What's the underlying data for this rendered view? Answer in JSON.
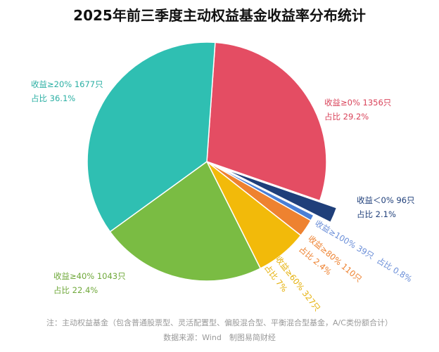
{
  "chart_data": {
    "type": "pie",
    "title": "2025年前三季度主动权益基金收益率分布统计",
    "start_angle_deg": 4,
    "direction": "clockwise",
    "slices": [
      {
        "label": "收益≥0% 1356只",
        "share_label": "占比 29.2%",
        "count": 1356,
        "percent": 29.2,
        "color": "#E44D63",
        "exploded": false
      },
      {
        "label": "收益＜0% 96只",
        "share_label": "占比 2.1%",
        "count": 96,
        "percent": 2.1,
        "color": "#1F3F7A",
        "exploded": true
      },
      {
        "label": "收益≥100% 39只",
        "share_label": "占比 0.8%",
        "count": 39,
        "percent": 0.8,
        "color": "#4A7FD6",
        "exploded": false
      },
      {
        "label": "收益≥80% 110只",
        "share_label": "占比 2.4%",
        "count": 110,
        "percent": 2.4,
        "color": "#EE8230",
        "exploded": false
      },
      {
        "label": "收益≥60% 327只",
        "share_label": "占比 7%",
        "count": 327,
        "percent": 7,
        "color": "#F2BA0A",
        "exploded": false
      },
      {
        "label": "收益≥40% 1043只",
        "share_label": "占比 22.4%",
        "count": 1043,
        "percent": 22.4,
        "color": "#7ABC43",
        "exploded": false
      },
      {
        "label": "收益≥20% 1677只",
        "share_label": "占比 36.1%",
        "count": 1677,
        "percent": 36.1,
        "color": "#2FBFB2",
        "exploded": false
      }
    ]
  },
  "note": "注：主动权益基金（包含普通股票型、灵活配置型、偏股混合型、平衡混合型基金，A/C类份额合计）",
  "source": "数据来源：Wind　制图易简财经"
}
